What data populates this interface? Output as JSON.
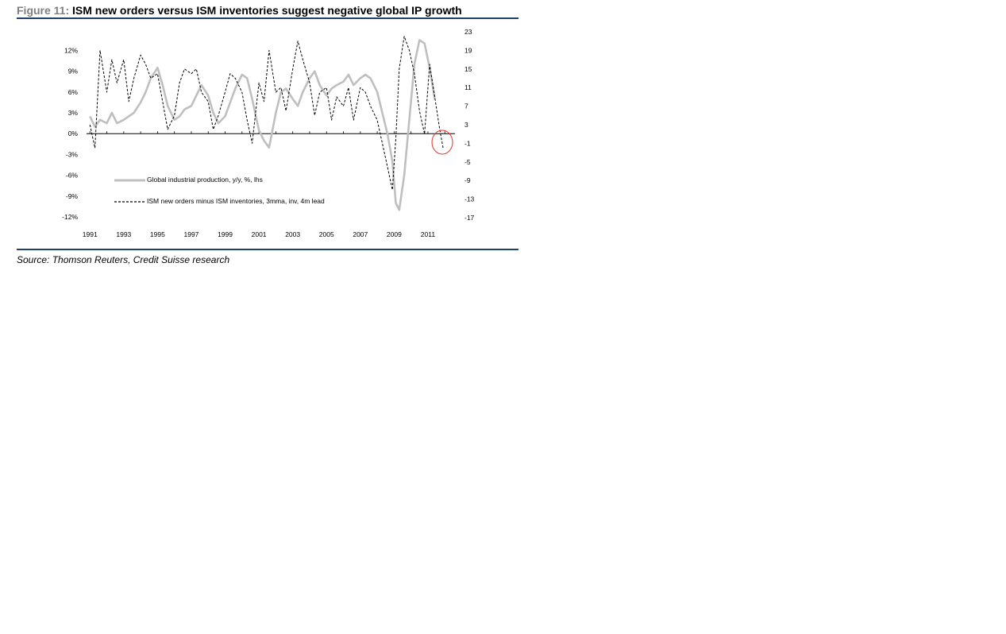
{
  "figure": {
    "label": "Figure 11:",
    "title": "ISM new orders versus ISM inventories suggest negative global IP growth",
    "source": "Source: Thomson Reuters, Credit Suisse research"
  },
  "chart_data": {
    "type": "line",
    "x_range": [
      1990.8,
      2012.6
    ],
    "y_left": {
      "range": [
        -12,
        14
      ],
      "ticks": [
        12,
        9,
        6,
        3,
        0,
        -3,
        -6,
        -9,
        -12
      ],
      "tick_labels": [
        "12%",
        "9%",
        "6%",
        "3%",
        "0%",
        "-3%",
        "-6%",
        "-9%",
        "-12%"
      ]
    },
    "y_right": {
      "range": [
        -17,
        23
      ],
      "ticks": [
        23,
        19,
        15,
        11,
        7,
        3,
        -1,
        -5,
        -9,
        -13,
        -17
      ],
      "tick_labels": [
        "23",
        "19",
        "15",
        "11",
        "7",
        "3",
        "-1",
        "-5",
        "-9",
        "-13",
        "-17"
      ]
    },
    "x_ticks": [
      1991,
      1993,
      1995,
      1997,
      1999,
      2001,
      2003,
      2005,
      2007,
      2009,
      2011
    ],
    "x_tick_labels": [
      "1991",
      "1993",
      "1995",
      "1997",
      "1999",
      "2001",
      "2003",
      "2005",
      "2007",
      "2009",
      "2011"
    ],
    "legend_position": "lower-left",
    "colors": {
      "ip": "#bfbfbf",
      "ism": "#000000",
      "highlight": "#e8302a",
      "rule": "#1f3f6e"
    },
    "series": [
      {
        "name": "Global industrial production, y/y, %, lhs",
        "axis": "left",
        "style": "solid",
        "x": [
          1991.0,
          1991.3,
          1991.6,
          1992.0,
          1992.3,
          1992.6,
          1993.0,
          1993.3,
          1993.6,
          1994.0,
          1994.3,
          1994.6,
          1995.0,
          1995.3,
          1995.6,
          1996.0,
          1996.3,
          1996.6,
          1997.0,
          1997.3,
          1997.6,
          1998.0,
          1998.3,
          1998.6,
          1999.0,
          1999.3,
          1999.6,
          2000.0,
          2000.3,
          2000.6,
          2001.0,
          2001.3,
          2001.6,
          2002.0,
          2002.3,
          2002.6,
          2003.0,
          2003.3,
          2003.6,
          2004.0,
          2004.3,
          2004.6,
          2005.0,
          2005.3,
          2005.6,
          2006.0,
          2006.3,
          2006.6,
          2007.0,
          2007.3,
          2007.6,
          2008.0,
          2008.3,
          2008.6,
          2008.9,
          2009.1,
          2009.3,
          2009.6,
          2009.9,
          2010.2,
          2010.5,
          2010.8,
          2011.1,
          2011.4
        ],
        "values": [
          2.5,
          1.0,
          2.0,
          1.5,
          3.0,
          1.5,
          2.0,
          2.5,
          3.0,
          4.5,
          6.0,
          8.0,
          9.5,
          7.0,
          4.0,
          2.0,
          2.5,
          3.5,
          4.0,
          5.5,
          7.0,
          5.5,
          3.0,
          1.5,
          2.5,
          4.5,
          6.5,
          8.5,
          8.0,
          5.0,
          0.5,
          -1.0,
          -2.0,
          3.0,
          6.0,
          6.5,
          5.0,
          4.0,
          6.0,
          8.0,
          9.0,
          7.0,
          5.5,
          6.5,
          7.0,
          7.5,
          8.5,
          7.0,
          8.0,
          8.5,
          8.0,
          6.0,
          3.0,
          0.0,
          -4.0,
          -10.0,
          -11.0,
          -6.0,
          2.0,
          10.0,
          13.5,
          13.0,
          9.5,
          5.0
        ]
      },
      {
        "name": "ISM new orders minus ISM inventories, 3mma, inv, 4m lead",
        "axis": "right",
        "style": "dashed",
        "x": [
          1991.0,
          1991.3,
          1991.6,
          1992.0,
          1992.3,
          1992.6,
          1993.0,
          1993.3,
          1993.6,
          1994.0,
          1994.3,
          1994.6,
          1995.0,
          1995.3,
          1995.6,
          1996.0,
          1996.3,
          1996.6,
          1997.0,
          1997.3,
          1997.6,
          1998.0,
          1998.3,
          1998.6,
          1999.0,
          1999.3,
          1999.6,
          2000.0,
          2000.3,
          2000.6,
          2001.0,
          2001.3,
          2001.6,
          2002.0,
          2002.3,
          2002.6,
          2003.0,
          2003.3,
          2003.6,
          2004.0,
          2004.3,
          2004.6,
          2005.0,
          2005.3,
          2005.6,
          2006.0,
          2006.3,
          2006.6,
          2007.0,
          2007.3,
          2007.6,
          2008.0,
          2008.3,
          2008.6,
          2008.9,
          2009.1,
          2009.3,
          2009.6,
          2009.9,
          2010.2,
          2010.5,
          2010.8,
          2011.1,
          2011.4,
          2011.7,
          2011.9
        ],
        "values": [
          3.0,
          -2.0,
          19.0,
          10.0,
          17.0,
          12.0,
          17.0,
          8.0,
          13.0,
          18.0,
          16.0,
          13.0,
          14.0,
          8.0,
          2.0,
          5.0,
          12.0,
          15.0,
          14.0,
          15.0,
          10.0,
          8.0,
          2.0,
          5.0,
          10.0,
          14.0,
          13.0,
          10.0,
          4.0,
          -1.0,
          12.0,
          8.0,
          19.0,
          10.0,
          11.0,
          6.0,
          15.0,
          21.0,
          17.0,
          12.0,
          5.0,
          10.0,
          11.0,
          4.0,
          9.0,
          7.0,
          11.0,
          4.0,
          11.0,
          10.0,
          7.0,
          4.0,
          -1.0,
          -6.0,
          -11.0,
          0.0,
          15.0,
          22.0,
          19.0,
          14.0,
          6.0,
          1.0,
          16.0,
          9.0,
          2.0,
          -2.0
        ]
      }
    ]
  }
}
